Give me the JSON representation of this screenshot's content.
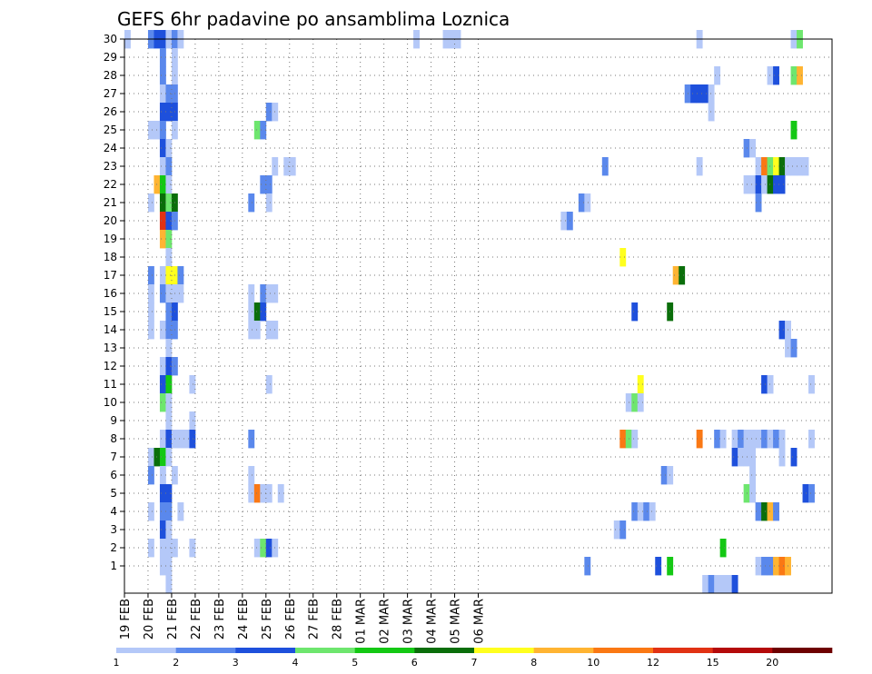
{
  "chart_data": {
    "type": "heatmap",
    "title": "GEFS 6hr padavine po ansamblima Loznica",
    "xlabel": "",
    "ylabel": "",
    "x_ticks": [
      "19 FEB",
      "20 FEB",
      "21 FEB",
      "22 FEB",
      "23 FEB",
      "24 FEB",
      "25 FEB",
      "26 FEB",
      "27 FEB",
      "28 FEB",
      "01 MAR",
      "02 MAR",
      "03 MAR",
      "04 MAR",
      "05 MAR",
      "06 MAR"
    ],
    "y_ticks": [
      "1",
      "2",
      "3",
      "4",
      "5",
      "6",
      "7",
      "8",
      "9",
      "10",
      "11",
      "12",
      "13",
      "14",
      "15",
      "16",
      "17",
      "18",
      "19",
      "20",
      "21",
      "22",
      "23",
      "24",
      "25",
      "26",
      "27",
      "28",
      "29",
      "30"
    ],
    "grid": true,
    "legend_position": "bottom",
    "legend": {
      "labels": [
        "1",
        "2",
        "3",
        "4",
        "5",
        "6",
        "7",
        "8",
        "10",
        "12",
        "15",
        "20"
      ],
      "colors": [
        "#b4c8f8",
        "#5a88ec",
        "#1e50dc",
        "#6ee66e",
        "#14c814",
        "#0a6e0a",
        "#ffff1e",
        "#ffb432",
        "#fa7814",
        "#e13214",
        "#b40a0a",
        "#6e0000"
      ]
    },
    "time_step_hours": 6,
    "members": [
      {
        "member": 30,
        "cells": [
          [
            0,
            1
          ],
          [
            4,
            1
          ],
          [
            4,
            2
          ],
          [
            5,
            3
          ],
          [
            6,
            3
          ],
          [
            7,
            1
          ],
          [
            8,
            1
          ],
          [
            8,
            2
          ],
          [
            9,
            1
          ],
          [
            49,
            1
          ],
          [
            54,
            1
          ],
          [
            55,
            1
          ],
          [
            56,
            1
          ],
          [
            97,
            1
          ],
          [
            113,
            1
          ],
          [
            114,
            4
          ]
        ]
      },
      {
        "member": 29,
        "cells": [
          [
            6,
            2
          ],
          [
            8,
            1
          ]
        ]
      },
      {
        "member": 28,
        "cells": [
          [
            6,
            2
          ],
          [
            8,
            1
          ],
          [
            100,
            1
          ],
          [
            109,
            1
          ],
          [
            110,
            3
          ],
          [
            113,
            4
          ],
          [
            114,
            8
          ]
        ]
      },
      {
        "member": 27,
        "cells": [
          [
            6,
            1
          ],
          [
            7,
            2
          ],
          [
            8,
            2
          ],
          [
            95,
            2
          ],
          [
            96,
            3
          ],
          [
            97,
            3
          ],
          [
            98,
            3
          ],
          [
            99,
            1
          ]
        ]
      },
      {
        "member": 26,
        "cells": [
          [
            6,
            3
          ],
          [
            7,
            3
          ],
          [
            8,
            3
          ],
          [
            24,
            2
          ],
          [
            25,
            1
          ],
          [
            99,
            1
          ]
        ]
      },
      {
        "member": 25,
        "cells": [
          [
            4,
            1
          ],
          [
            5,
            1
          ],
          [
            6,
            2
          ],
          [
            8,
            1
          ],
          [
            22,
            4
          ],
          [
            23,
            2
          ],
          [
            113,
            5
          ]
        ]
      },
      {
        "member": 24,
        "cells": [
          [
            6,
            3
          ],
          [
            7,
            1
          ],
          [
            105,
            2
          ],
          [
            106,
            1
          ]
        ]
      },
      {
        "member": 23,
        "cells": [
          [
            6,
            1
          ],
          [
            7,
            2
          ],
          [
            25,
            1
          ],
          [
            27,
            1
          ],
          [
            28,
            1
          ],
          [
            81,
            2
          ],
          [
            97,
            1
          ],
          [
            107,
            1
          ],
          [
            108,
            9
          ],
          [
            109,
            4
          ],
          [
            110,
            7
          ],
          [
            111,
            6
          ],
          [
            112,
            1
          ],
          [
            113,
            1
          ],
          [
            114,
            1
          ],
          [
            115,
            1
          ]
        ]
      },
      {
        "member": 22,
        "cells": [
          [
            5,
            8
          ],
          [
            6,
            5
          ],
          [
            7,
            1
          ],
          [
            23,
            2
          ],
          [
            24,
            2
          ],
          [
            105,
            1
          ],
          [
            106,
            1
          ],
          [
            107,
            3
          ],
          [
            108,
            1
          ],
          [
            109,
            6
          ],
          [
            110,
            3
          ],
          [
            111,
            3
          ]
        ]
      },
      {
        "member": 21,
        "cells": [
          [
            4,
            1
          ],
          [
            6,
            6
          ],
          [
            7,
            4
          ],
          [
            8,
            6
          ],
          [
            21,
            2
          ],
          [
            24,
            1
          ],
          [
            77,
            2
          ],
          [
            78,
            1
          ],
          [
            107,
            2
          ]
        ]
      },
      {
        "member": 20,
        "cells": [
          [
            6,
            10
          ],
          [
            7,
            3
          ],
          [
            8,
            2
          ],
          [
            74,
            1
          ],
          [
            75,
            2
          ]
        ]
      },
      {
        "member": 19,
        "cells": [
          [
            6,
            8
          ],
          [
            7,
            4
          ]
        ]
      },
      {
        "member": 18,
        "cells": [
          [
            7,
            1
          ],
          [
            84,
            7
          ]
        ]
      },
      {
        "member": 17,
        "cells": [
          [
            4,
            2
          ],
          [
            6,
            1
          ],
          [
            7,
            7
          ],
          [
            8,
            7
          ],
          [
            9,
            2
          ],
          [
            93,
            8
          ],
          [
            94,
            6
          ]
        ]
      },
      {
        "member": 16,
        "cells": [
          [
            4,
            1
          ],
          [
            6,
            2
          ],
          [
            7,
            1
          ],
          [
            8,
            1
          ],
          [
            9,
            1
          ],
          [
            21,
            1
          ],
          [
            23,
            2
          ],
          [
            24,
            1
          ],
          [
            25,
            1
          ]
        ]
      },
      {
        "member": 15,
        "cells": [
          [
            4,
            1
          ],
          [
            7,
            2
          ],
          [
            8,
            3
          ],
          [
            21,
            1
          ],
          [
            22,
            6
          ],
          [
            23,
            3
          ],
          [
            86,
            3
          ],
          [
            92,
            6
          ]
        ]
      },
      {
        "member": 14,
        "cells": [
          [
            4,
            1
          ],
          [
            6,
            1
          ],
          [
            7,
            2
          ],
          [
            8,
            2
          ],
          [
            21,
            1
          ],
          [
            22,
            1
          ],
          [
            24,
            1
          ],
          [
            25,
            1
          ],
          [
            111,
            3
          ],
          [
            112,
            1
          ]
        ]
      },
      {
        "member": 13,
        "cells": [
          [
            7,
            1
          ],
          [
            112,
            1
          ],
          [
            113,
            2
          ]
        ]
      },
      {
        "member": 12,
        "cells": [
          [
            6,
            1
          ],
          [
            7,
            3
          ],
          [
            8,
            2
          ]
        ]
      },
      {
        "member": 11,
        "cells": [
          [
            6,
            3
          ],
          [
            7,
            5
          ],
          [
            11,
            1
          ],
          [
            24,
            1
          ],
          [
            87,
            7
          ],
          [
            108,
            3
          ],
          [
            109,
            1
          ],
          [
            116,
            1
          ]
        ]
      },
      {
        "member": 10,
        "cells": [
          [
            6,
            4
          ],
          [
            7,
            1
          ],
          [
            85,
            1
          ],
          [
            86,
            4
          ],
          [
            87,
            1
          ]
        ]
      },
      {
        "member": 9,
        "cells": [
          [
            7,
            1
          ],
          [
            11,
            1
          ]
        ]
      },
      {
        "member": 8,
        "cells": [
          [
            6,
            1
          ],
          [
            7,
            3
          ],
          [
            8,
            1
          ],
          [
            9,
            1
          ],
          [
            10,
            1
          ],
          [
            11,
            3
          ],
          [
            21,
            2
          ],
          [
            84,
            9
          ],
          [
            85,
            4
          ],
          [
            86,
            1
          ],
          [
            97,
            9
          ],
          [
            100,
            2
          ],
          [
            101,
            1
          ],
          [
            103,
            1
          ],
          [
            104,
            2
          ],
          [
            105,
            1
          ],
          [
            106,
            1
          ],
          [
            107,
            1
          ],
          [
            108,
            2
          ],
          [
            109,
            1
          ],
          [
            110,
            2
          ],
          [
            111,
            1
          ],
          [
            116,
            1
          ]
        ]
      },
      {
        "member": 7,
        "cells": [
          [
            4,
            1
          ],
          [
            5,
            6
          ],
          [
            6,
            5
          ],
          [
            7,
            1
          ],
          [
            103,
            3
          ],
          [
            104,
            1
          ],
          [
            105,
            1
          ],
          [
            106,
            1
          ],
          [
            111,
            1
          ],
          [
            113,
            3
          ]
        ]
      },
      {
        "member": 6,
        "cells": [
          [
            4,
            2
          ],
          [
            6,
            1
          ],
          [
            8,
            1
          ],
          [
            21,
            1
          ],
          [
            91,
            2
          ],
          [
            92,
            1
          ],
          [
            106,
            1
          ]
        ]
      },
      {
        "member": 5,
        "cells": [
          [
            6,
            3
          ],
          [
            7,
            3
          ],
          [
            21,
            1
          ],
          [
            22,
            9
          ],
          [
            23,
            1
          ],
          [
            24,
            1
          ],
          [
            26,
            1
          ],
          [
            105,
            4
          ],
          [
            106,
            1
          ],
          [
            115,
            3
          ],
          [
            116,
            2
          ]
        ]
      },
      {
        "member": 4,
        "cells": [
          [
            4,
            1
          ],
          [
            6,
            2
          ],
          [
            7,
            2
          ],
          [
            9,
            1
          ],
          [
            86,
            2
          ],
          [
            87,
            1
          ],
          [
            88,
            2
          ],
          [
            89,
            1
          ],
          [
            107,
            2
          ],
          [
            108,
            6
          ],
          [
            109,
            8
          ],
          [
            110,
            2
          ]
        ]
      },
      {
        "member": 3,
        "cells": [
          [
            6,
            3
          ],
          [
            7,
            1
          ],
          [
            83,
            1
          ],
          [
            84,
            2
          ]
        ]
      },
      {
        "member": 2,
        "cells": [
          [
            4,
            1
          ],
          [
            6,
            1
          ],
          [
            7,
            1
          ],
          [
            8,
            1
          ],
          [
            11,
            1
          ],
          [
            22,
            1
          ],
          [
            23,
            4
          ],
          [
            24,
            3
          ],
          [
            25,
            1
          ],
          [
            101,
            5
          ]
        ]
      },
      {
        "member": 1,
        "cells": [
          [
            6,
            1
          ],
          [
            7,
            1
          ],
          [
            78,
            2
          ],
          [
            90,
            3
          ],
          [
            92,
            5
          ],
          [
            107,
            1
          ],
          [
            108,
            2
          ],
          [
            109,
            2
          ],
          [
            110,
            8
          ],
          [
            111,
            9
          ],
          [
            112,
            8
          ]
        ]
      },
      {
        "member": 0,
        "cells": [
          [
            7,
            1
          ],
          [
            98,
            1
          ],
          [
            99,
            2
          ],
          [
            100,
            1
          ],
          [
            101,
            1
          ],
          [
            102,
            1
          ],
          [
            103,
            3
          ]
        ]
      }
    ]
  }
}
